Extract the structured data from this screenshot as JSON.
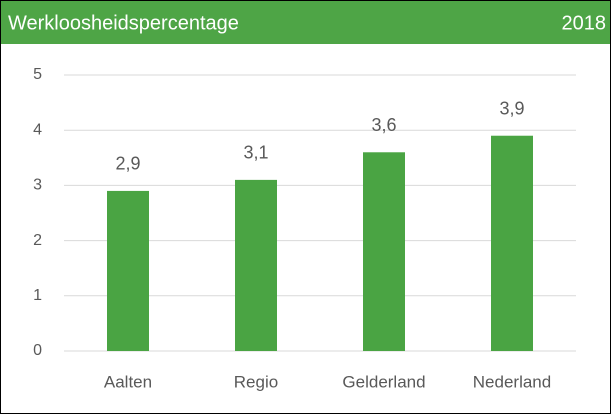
{
  "chart_data": {
    "type": "bar",
    "title": "Werkloosheidspercentage",
    "subtitle": "2018",
    "categories": [
      "Aalten",
      "Regio",
      "Gelderland",
      "Nederland"
    ],
    "values": [
      2.9,
      3.1,
      3.6,
      3.9
    ],
    "value_labels": [
      "2,9",
      "3,1",
      "3,6",
      "3,9"
    ],
    "color": "#4aa443",
    "ylim": [
      0,
      5
    ],
    "yticks": [
      0,
      1,
      2,
      3,
      4,
      5
    ],
    "grid": true
  }
}
